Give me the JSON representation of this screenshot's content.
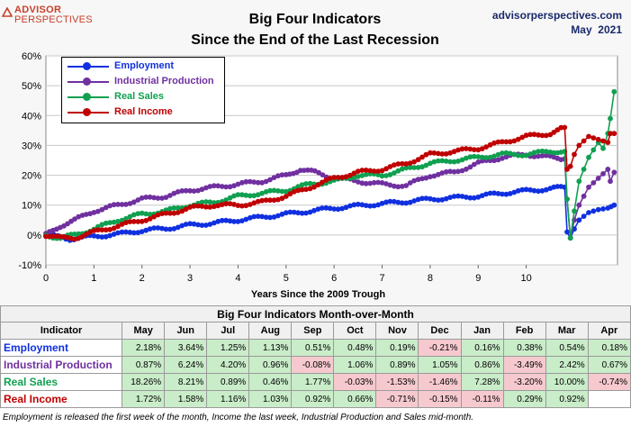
{
  "header": {
    "logo_line1": "ADVISOR",
    "logo_line2": "PERSPECTIVES",
    "title_line1": "Big Four Indicators",
    "title_line2": "Since the End of the Last Recession",
    "site": "advisorperspectives.com",
    "date": "May  2021"
  },
  "chart_data": {
    "type": "line",
    "title": "Big Four Indicators Since the End of the Last Recession",
    "xlabel": "Years Since the 2009 Trough",
    "ylabel": "",
    "xlim": [
      0,
      11.9
    ],
    "ylim": [
      -10,
      60
    ],
    "x_ticks": [
      "0",
      "1",
      "2",
      "3",
      "4",
      "5",
      "6",
      "7",
      "8",
      "9",
      "10"
    ],
    "y_ticks": [
      "-10%",
      "0%",
      "10%",
      "20%",
      "30%",
      "40%",
      "50%",
      "60%"
    ],
    "legend_position": "top-left",
    "series": [
      {
        "name": "Employment",
        "color": "#1030e0",
        "x": [
          0,
          0.5,
          1,
          1.5,
          2,
          2.5,
          3,
          3.5,
          4,
          4.5,
          5,
          5.5,
          6,
          6.5,
          7,
          7.5,
          8,
          8.5,
          9,
          9.5,
          10,
          10.5,
          10.8,
          10.85,
          10.92,
          11.0,
          11.1,
          11.3,
          11.5,
          11.7,
          11.83
        ],
        "y": [
          0,
          -1.3,
          -0.5,
          0.3,
          1.5,
          2.2,
          3.3,
          4.0,
          5.0,
          6.0,
          7.0,
          8.0,
          9.0,
          9.8,
          10.5,
          11.2,
          12.0,
          12.5,
          13.0,
          14.0,
          14.8,
          15.5,
          16.0,
          1.0,
          -1.0,
          2.0,
          5.0,
          7.5,
          8.5,
          9.0,
          10.0
        ]
      },
      {
        "name": "Industrial Production",
        "color": "#7030a0",
        "x": [
          0,
          0.3,
          0.6,
          1,
          1.5,
          2,
          2.5,
          3,
          3.5,
          4,
          4.5,
          5,
          5.3,
          5.6,
          6,
          6.5,
          7,
          7.5,
          8,
          8.5,
          9,
          9.5,
          10,
          10.5,
          10.8,
          10.85,
          10.92,
          11.0,
          11.1,
          11.3,
          11.5,
          11.7,
          11.75,
          11.83
        ],
        "y": [
          0,
          3,
          5,
          8,
          10,
          12,
          13,
          15,
          16,
          17,
          18,
          20,
          22,
          21,
          19,
          18,
          17,
          16.5,
          20,
          21,
          24,
          26,
          27,
          26,
          25.5,
          12,
          -1,
          5,
          10,
          16,
          19,
          22,
          18,
          21
        ]
      },
      {
        "name": "Real Sales",
        "color": "#10a050",
        "x": [
          0,
          0.3,
          0.6,
          1,
          1.5,
          2,
          2.5,
          3,
          3.5,
          4,
          4.5,
          5,
          5.5,
          6,
          6.5,
          7,
          7.5,
          8,
          8.5,
          9,
          9.5,
          10,
          10.5,
          10.8,
          10.85,
          10.92,
          11.0,
          11.1,
          11.3,
          11.5,
          11.6,
          11.7,
          11.75,
          11.83
        ],
        "y": [
          0,
          -1,
          0,
          2,
          5,
          7,
          8,
          10,
          11,
          13,
          14,
          15,
          17,
          18,
          20,
          20,
          22,
          24,
          25,
          26,
          27,
          27,
          28,
          28,
          12,
          -1,
          8,
          18,
          26,
          31,
          29,
          34,
          39,
          48
        ]
      },
      {
        "name": "Real Income",
        "color": "#c00000",
        "x": [
          0,
          0.3,
          0.6,
          1,
          1.5,
          2,
          2.5,
          3,
          3.5,
          4,
          4.5,
          5,
          5.5,
          6,
          6.5,
          7,
          7.5,
          8,
          8.5,
          9,
          9.5,
          10,
          10.5,
          10.8,
          10.85,
          10.92,
          11.0,
          11.1,
          11.3,
          11.5,
          11.7,
          11.75,
          11.83
        ],
        "y": [
          0,
          -1,
          -1,
          1,
          3,
          5,
          7,
          9,
          10,
          10,
          11,
          13,
          16,
          19,
          21,
          22,
          24,
          27,
          28,
          29,
          31,
          33,
          34,
          36,
          22,
          23,
          27,
          30,
          33,
          32,
          31,
          34,
          34
        ]
      }
    ]
  },
  "table": {
    "title": "Big Four Indicators Month-over-Month",
    "header_label": "Indicator",
    "months": [
      "May",
      "Jun",
      "Jul",
      "Aug",
      "Sep",
      "Oct",
      "Nov",
      "Dec",
      "Jan",
      "Feb",
      "Mar",
      "Apr"
    ],
    "rows": [
      {
        "name": "Employment",
        "color": "#1030e0",
        "values": [
          "2.18%",
          "3.64%",
          "1.25%",
          "1.13%",
          "0.51%",
          "0.48%",
          "0.19%",
          "-0.21%",
          "0.16%",
          "0.38%",
          "0.54%",
          "0.18%"
        ]
      },
      {
        "name": "Industrial Production",
        "color": "#7030a0",
        "values": [
          "0.87%",
          "6.24%",
          "4.20%",
          "0.96%",
          "-0.08%",
          "1.06%",
          "0.89%",
          "1.05%",
          "0.86%",
          "-3.49%",
          "2.42%",
          "0.67%"
        ]
      },
      {
        "name": "Real Sales",
        "color": "#10a050",
        "values": [
          "18.26%",
          "8.21%",
          "0.89%",
          "0.46%",
          "1.77%",
          "-0.03%",
          "-1.53%",
          "-1.46%",
          "7.28%",
          "-3.20%",
          "10.00%",
          "-0.74%"
        ]
      },
      {
        "name": "Real Income",
        "color": "#c00000",
        "values": [
          "1.72%",
          "1.58%",
          "1.16%",
          "1.03%",
          "0.92%",
          "0.66%",
          "-0.71%",
          "-0.15%",
          "-0.11%",
          "0.29%",
          "0.92%",
          ""
        ]
      }
    ]
  },
  "footnote": "Employment is released the first week of the month, Income the last week, Industrial Production and Sales mid-month."
}
